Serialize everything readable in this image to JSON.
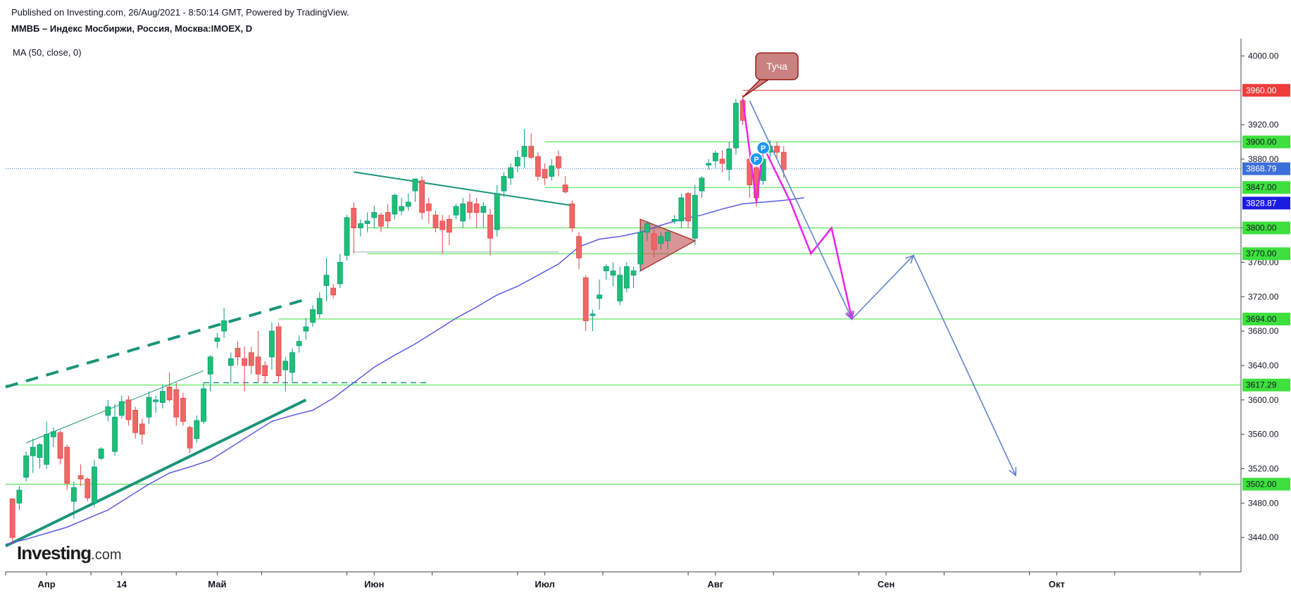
{
  "header": {
    "published": "Published on Investing.com, 26/Aug/2021 - 8:50:14 GMT, Powered by TradingView.",
    "symbol": "ММВБ – Индекс Мосбиржи, Россия, Москва:IMOEX, D",
    "indicator": "MA (50, close, 0)"
  },
  "logo": {
    "brand": "Investing",
    "suffix": ".com"
  },
  "colors": {
    "up": "#089981",
    "up_fill": "#1dbf73",
    "down": "#e04646",
    "down_fill": "#ef6767",
    "ma": "#5b5be8",
    "level": "#3ee03e",
    "resistance": "#f03c3c",
    "trend": "#1a9479",
    "forecast_pink": "#ee22ee",
    "forecast_blue": "#5f84d0",
    "last_price": "#3c6fd8"
  },
  "chart_data": {
    "type": "candlestick",
    "timeframe": "D",
    "ylim": [
      3400,
      4020
    ],
    "x_range": [
      0,
      181
    ],
    "y_ticks": [
      "4000.00",
      "3920.00",
      "3880.00",
      "3800.00",
      "3760.00",
      "3720.00",
      "3680.00",
      "3640.00",
      "3600.00",
      "3560.00",
      "3520.00",
      "3480.00",
      "3440.00"
    ],
    "x_ticks": [
      {
        "label": "Апр",
        "x": 6
      },
      {
        "label": "14",
        "x": 17
      },
      {
        "label": "Май",
        "x": 31
      },
      {
        "label": "Июн",
        "x": 54
      },
      {
        "label": "Июл",
        "x": 79
      },
      {
        "label": "Авг",
        "x": 104
      },
      {
        "label": "Сен",
        "x": 129
      },
      {
        "label": "Окт",
        "x": 154
      }
    ],
    "candles": [
      {
        "x": 1,
        "o": 3485,
        "h": 3485,
        "l": 3432,
        "c": 3440
      },
      {
        "x": 2,
        "o": 3480,
        "h": 3500,
        "l": 3472,
        "c": 3495
      },
      {
        "x": 3,
        "o": 3510,
        "h": 3540,
        "l": 3505,
        "c": 3535
      },
      {
        "x": 4,
        "o": 3535,
        "h": 3555,
        "l": 3515,
        "c": 3545
      },
      {
        "x": 5,
        "o": 3533,
        "h": 3550,
        "l": 3520,
        "c": 3548
      },
      {
        "x": 6,
        "o": 3525,
        "h": 3575,
        "l": 3520,
        "c": 3560
      },
      {
        "x": 7,
        "o": 3557,
        "h": 3568,
        "l": 3545,
        "c": 3563
      },
      {
        "x": 8,
        "o": 3562,
        "h": 3565,
        "l": 3525,
        "c": 3532
      },
      {
        "x": 9,
        "o": 3545,
        "h": 3548,
        "l": 3495,
        "c": 3503
      },
      {
        "x": 10,
        "o": 3482,
        "h": 3505,
        "l": 3462,
        "c": 3498
      },
      {
        "x": 11,
        "o": 3512,
        "h": 3525,
        "l": 3500,
        "c": 3508
      },
      {
        "x": 12,
        "o": 3508,
        "h": 3510,
        "l": 3482,
        "c": 3486
      },
      {
        "x": 13,
        "o": 3480,
        "h": 3530,
        "l": 3475,
        "c": 3522
      },
      {
        "x": 14,
        "o": 3532,
        "h": 3545,
        "l": 3530,
        "c": 3543
      },
      {
        "x": 15,
        "o": 3582,
        "h": 3600,
        "l": 3575,
        "c": 3592
      },
      {
        "x": 16,
        "o": 3540,
        "h": 3595,
        "l": 3535,
        "c": 3580
      },
      {
        "x": 17,
        "o": 3582,
        "h": 3605,
        "l": 3578,
        "c": 3598
      },
      {
        "x": 18,
        "o": 3600,
        "h": 3605,
        "l": 3570,
        "c": 3577
      },
      {
        "x": 19,
        "o": 3588,
        "h": 3592,
        "l": 3555,
        "c": 3562
      },
      {
        "x": 20,
        "o": 3572,
        "h": 3578,
        "l": 3548,
        "c": 3560
      },
      {
        "x": 21,
        "o": 3580,
        "h": 3610,
        "l": 3572,
        "c": 3603
      },
      {
        "x": 22,
        "o": 3598,
        "h": 3605,
        "l": 3585,
        "c": 3600
      },
      {
        "x": 23,
        "o": 3597,
        "h": 3618,
        "l": 3590,
        "c": 3610
      },
      {
        "x": 24,
        "o": 3615,
        "h": 3632,
        "l": 3598,
        "c": 3600
      },
      {
        "x": 25,
        "o": 3612,
        "h": 3620,
        "l": 3570,
        "c": 3580
      },
      {
        "x": 26,
        "o": 3602,
        "h": 3608,
        "l": 3570,
        "c": 3575
      },
      {
        "x": 27,
        "o": 3568,
        "h": 3570,
        "l": 3538,
        "c": 3544
      },
      {
        "x": 28,
        "o": 3555,
        "h": 3582,
        "l": 3550,
        "c": 3576
      },
      {
        "x": 29,
        "o": 3575,
        "h": 3620,
        "l": 3572,
        "c": 3613
      },
      {
        "x": 30,
        "o": 3630,
        "h": 3652,
        "l": 3610,
        "c": 3650
      },
      {
        "x": 31,
        "o": 3668,
        "h": 3678,
        "l": 3660,
        "c": 3672
      },
      {
        "x": 32,
        "o": 3680,
        "h": 3707,
        "l": 3672,
        "c": 3692
      },
      {
        "x": 33,
        "o": 3640,
        "h": 3655,
        "l": 3620,
        "c": 3648
      },
      {
        "x": 34,
        "o": 3660,
        "h": 3668,
        "l": 3640,
        "c": 3650
      },
      {
        "x": 35,
        "o": 3648,
        "h": 3662,
        "l": 3610,
        "c": 3640
      },
      {
        "x": 36,
        "o": 3655,
        "h": 3662,
        "l": 3630,
        "c": 3640
      },
      {
        "x": 37,
        "o": 3650,
        "h": 3680,
        "l": 3620,
        "c": 3630
      },
      {
        "x": 38,
        "o": 3640,
        "h": 3645,
        "l": 3620,
        "c": 3628
      },
      {
        "x": 39,
        "o": 3650,
        "h": 3690,
        "l": 3635,
        "c": 3680
      },
      {
        "x": 40,
        "o": 3685,
        "h": 3690,
        "l": 3620,
        "c": 3628
      },
      {
        "x": 41,
        "o": 3635,
        "h": 3650,
        "l": 3610,
        "c": 3645
      },
      {
        "x": 42,
        "o": 3632,
        "h": 3660,
        "l": 3620,
        "c": 3655
      },
      {
        "x": 43,
        "o": 3663,
        "h": 3675,
        "l": 3655,
        "c": 3668
      },
      {
        "x": 44,
        "o": 3680,
        "h": 3695,
        "l": 3670,
        "c": 3685
      },
      {
        "x": 45,
        "o": 3690,
        "h": 3710,
        "l": 3685,
        "c": 3705
      },
      {
        "x": 46,
        "o": 3700,
        "h": 3725,
        "l": 3695,
        "c": 3718
      },
      {
        "x": 47,
        "o": 3733,
        "h": 3765,
        "l": 3715,
        "c": 3745
      },
      {
        "x": 48,
        "o": 3730,
        "h": 3735,
        "l": 3718,
        "c": 3722
      },
      {
        "x": 49,
        "o": 3735,
        "h": 3770,
        "l": 3730,
        "c": 3760
      },
      {
        "x": 50,
        "o": 3768,
        "h": 3815,
        "l": 3762,
        "c": 3812
      },
      {
        "x": 51,
        "o": 3823,
        "h": 3830,
        "l": 3770,
        "c": 3800
      },
      {
        "x": 52,
        "o": 3800,
        "h": 3810,
        "l": 3790,
        "c": 3805
      },
      {
        "x": 53,
        "o": 3805,
        "h": 3818,
        "l": 3795,
        "c": 3808
      },
      {
        "x": 54,
        "o": 3812,
        "h": 3826,
        "l": 3800,
        "c": 3818
      },
      {
        "x": 55,
        "o": 3815,
        "h": 3818,
        "l": 3795,
        "c": 3802
      },
      {
        "x": 56,
        "o": 3818,
        "h": 3828,
        "l": 3800,
        "c": 3808
      },
      {
        "x": 57,
        "o": 3816,
        "h": 3840,
        "l": 3810,
        "c": 3838
      },
      {
        "x": 58,
        "o": 3820,
        "h": 3835,
        "l": 3815,
        "c": 3825
      },
      {
        "x": 59,
        "o": 3825,
        "h": 3840,
        "l": 3820,
        "c": 3830
      },
      {
        "x": 60,
        "o": 3843,
        "h": 3855,
        "l": 3830,
        "c": 3857
      },
      {
        "x": 61,
        "o": 3855,
        "h": 3860,
        "l": 3810,
        "c": 3818
      },
      {
        "x": 62,
        "o": 3828,
        "h": 3835,
        "l": 3805,
        "c": 3820
      },
      {
        "x": 63,
        "o": 3815,
        "h": 3820,
        "l": 3795,
        "c": 3800
      },
      {
        "x": 64,
        "o": 3808,
        "h": 3815,
        "l": 3770,
        "c": 3798
      },
      {
        "x": 65,
        "o": 3810,
        "h": 3815,
        "l": 3780,
        "c": 3795
      },
      {
        "x": 66,
        "o": 3815,
        "h": 3828,
        "l": 3810,
        "c": 3825
      },
      {
        "x": 67,
        "o": 3808,
        "h": 3835,
        "l": 3800,
        "c": 3828
      },
      {
        "x": 68,
        "o": 3830,
        "h": 3840,
        "l": 3810,
        "c": 3818
      },
      {
        "x": 69,
        "o": 3828,
        "h": 3835,
        "l": 3800,
        "c": 3818
      },
      {
        "x": 70,
        "o": 3818,
        "h": 3830,
        "l": 3800,
        "c": 3825
      },
      {
        "x": 71,
        "o": 3815,
        "h": 3822,
        "l": 3768,
        "c": 3788
      },
      {
        "x": 72,
        "o": 3798,
        "h": 3850,
        "l": 3790,
        "c": 3840
      },
      {
        "x": 73,
        "o": 3843,
        "h": 3865,
        "l": 3836,
        "c": 3860
      },
      {
        "x": 74,
        "o": 3858,
        "h": 3875,
        "l": 3850,
        "c": 3870
      },
      {
        "x": 75,
        "o": 3872,
        "h": 3890,
        "l": 3865,
        "c": 3882
      },
      {
        "x": 76,
        "o": 3883,
        "h": 3915,
        "l": 3870,
        "c": 3895
      },
      {
        "x": 77,
        "o": 3895,
        "h": 3910,
        "l": 3880,
        "c": 3882
      },
      {
        "x": 78,
        "o": 3883,
        "h": 3888,
        "l": 3855,
        "c": 3860
      },
      {
        "x": 79,
        "o": 3868,
        "h": 3875,
        "l": 3850,
        "c": 3858
      },
      {
        "x": 80,
        "o": 3860,
        "h": 3880,
        "l": 3855,
        "c": 3872
      },
      {
        "x": 81,
        "o": 3883,
        "h": 3890,
        "l": 3860,
        "c": 3870
      },
      {
        "x": 82,
        "o": 3850,
        "h": 3860,
        "l": 3840,
        "c": 3842
      },
      {
        "x": 83,
        "o": 3828,
        "h": 3832,
        "l": 3795,
        "c": 3800
      },
      {
        "x": 84,
        "o": 3790,
        "h": 3795,
        "l": 3752,
        "c": 3765
      },
      {
        "x": 85,
        "o": 3742,
        "h": 3745,
        "l": 3680,
        "c": 3692
      },
      {
        "x": 86,
        "o": 3698,
        "h": 3705,
        "l": 3680,
        "c": 3700
      },
      {
        "x": 87,
        "o": 3718,
        "h": 3740,
        "l": 3705,
        "c": 3722
      },
      {
        "x": 88,
        "o": 3750,
        "h": 3758,
        "l": 3740,
        "c": 3755
      },
      {
        "x": 89,
        "o": 3745,
        "h": 3760,
        "l": 3732,
        "c": 3750
      },
      {
        "x": 90,
        "o": 3715,
        "h": 3755,
        "l": 3710,
        "c": 3745
      },
      {
        "x": 91,
        "o": 3730,
        "h": 3760,
        "l": 3725,
        "c": 3755
      },
      {
        "x": 92,
        "o": 3745,
        "h": 3755,
        "l": 3730,
        "c": 3750
      },
      {
        "x": 93,
        "o": 3758,
        "h": 3800,
        "l": 3750,
        "c": 3795
      },
      {
        "x": 94,
        "o": 3795,
        "h": 3808,
        "l": 3785,
        "c": 3805
      },
      {
        "x": 95,
        "o": 3793,
        "h": 3800,
        "l": 3765,
        "c": 3775
      },
      {
        "x": 96,
        "o": 3782,
        "h": 3795,
        "l": 3775,
        "c": 3790
      },
      {
        "x": 97,
        "o": 3785,
        "h": 3798,
        "l": 3775,
        "c": 3795
      },
      {
        "x": 98,
        "o": 3808,
        "h": 3815,
        "l": 3805,
        "c": 3810
      },
      {
        "x": 99,
        "o": 3808,
        "h": 3840,
        "l": 3800,
        "c": 3835
      },
      {
        "x": 100,
        "o": 3840,
        "h": 3842,
        "l": 3800,
        "c": 3808
      },
      {
        "x": 101,
        "o": 3788,
        "h": 3850,
        "l": 3780,
        "c": 3838
      },
      {
        "x": 102,
        "o": 3843,
        "h": 3860,
        "l": 3835,
        "c": 3858
      },
      {
        "x": 103,
        "o": 3873,
        "h": 3880,
        "l": 3868,
        "c": 3875
      },
      {
        "x": 104,
        "o": 3878,
        "h": 3890,
        "l": 3870,
        "c": 3887
      },
      {
        "x": 105,
        "o": 3880,
        "h": 3890,
        "l": 3865,
        "c": 3875
      },
      {
        "x": 106,
        "o": 3868,
        "h": 3900,
        "l": 3855,
        "c": 3892
      },
      {
        "x": 107,
        "o": 3893,
        "h": 3950,
        "l": 3885,
        "c": 3945
      },
      {
        "x": 108,
        "o": 3948,
        "h": 3955,
        "l": 3920,
        "c": 3925
      },
      {
        "x": 109,
        "o": 3880,
        "h": 3890,
        "l": 3835,
        "c": 3850
      },
      {
        "x": 110,
        "o": 3870,
        "h": 3875,
        "l": 3825,
        "c": 3835
      },
      {
        "x": 111,
        "o": 3855,
        "h": 3900,
        "l": 3850,
        "c": 3880
      },
      {
        "x": 112,
        "o": 3888,
        "h": 3902,
        "l": 3880,
        "c": 3895
      },
      {
        "x": 113,
        "o": 3895,
        "h": 3900,
        "l": 3880,
        "c": 3888
      },
      {
        "x": 114,
        "o": 3888,
        "h": 3895,
        "l": 3858,
        "c": 3868
      }
    ],
    "ma_50": [
      [
        0,
        3432
      ],
      [
        3,
        3438
      ],
      [
        6,
        3445
      ],
      [
        9,
        3452
      ],
      [
        12,
        3462
      ],
      [
        15,
        3472
      ],
      [
        18,
        3487
      ],
      [
        21,
        3502
      ],
      [
        24,
        3515
      ],
      [
        27,
        3522
      ],
      [
        30,
        3530
      ],
      [
        33,
        3545
      ],
      [
        36,
        3560
      ],
      [
        39,
        3575
      ],
      [
        42,
        3582
      ],
      [
        45,
        3588
      ],
      [
        48,
        3602
      ],
      [
        51,
        3620
      ],
      [
        54,
        3638
      ],
      [
        57,
        3652
      ],
      [
        60,
        3665
      ],
      [
        63,
        3680
      ],
      [
        66,
        3695
      ],
      [
        69,
        3708
      ],
      [
        72,
        3722
      ],
      [
        75,
        3732
      ],
      [
        78,
        3745
      ],
      [
        81,
        3758
      ],
      [
        84,
        3778
      ],
      [
        87,
        3787
      ],
      [
        90,
        3790
      ],
      [
        93,
        3795
      ],
      [
        96,
        3803
      ],
      [
        99,
        3810
      ],
      [
        102,
        3815
      ],
      [
        105,
        3822
      ],
      [
        108,
        3828
      ],
      [
        111,
        3830
      ],
      [
        114,
        3832
      ],
      [
        117,
        3835
      ]
    ],
    "ma_last": "3828.87",
    "last_close": "3868.79",
    "horizontal_levels": [
      {
        "value": 3960.0,
        "label": "3960.00",
        "color": "#f03c3c",
        "x_start": 108
      },
      {
        "value": 3900.0,
        "label": "3900.00",
        "color": "#3ee03e",
        "x_start": 79
      },
      {
        "value": 3847.0,
        "label": "3847.00",
        "color": "#3ee03e",
        "x_start": 79
      },
      {
        "value": 3800.0,
        "label": "3800.00",
        "color": "#3ee03e",
        "x_start": 53
      },
      {
        "value": 3770.0,
        "label": "3770.00",
        "color": "#3ee03e",
        "x_start": 53
      },
      {
        "value": 3694.0,
        "label": "3694.00",
        "color": "#3ee03e",
        "x_start": 40
      },
      {
        "value": 3617.29,
        "label": "3617.29",
        "color": "#3ee03e",
        "x_start": 0
      },
      {
        "value": 3502.0,
        "label": "3502.00",
        "color": "#3ee03e",
        "x_start": 0
      }
    ],
    "annotations": [
      {
        "type": "callout",
        "text": "Туча",
        "x": 113,
        "y": 3988,
        "point_x": 108,
        "point_y": 3952
      },
      {
        "type": "pivot",
        "text": "P",
        "x": 110,
        "y": 3880
      },
      {
        "type": "pivot",
        "text": "P",
        "x": 111,
        "y": 3893
      }
    ],
    "drawings": [
      {
        "name": "trend-support",
        "points": [
          [
            0,
            3430
          ],
          [
            44,
            3600
          ]
        ],
        "style": "solid-thick"
      },
      {
        "name": "channel-top-dashed",
        "points": [
          [
            0,
            3615
          ],
          [
            44,
            3717
          ]
        ],
        "style": "dashed-thick"
      },
      {
        "name": "channel-top-thin",
        "points": [
          [
            3,
            3550
          ],
          [
            29,
            3634
          ]
        ],
        "style": "thin"
      },
      {
        "name": "dashed-level",
        "points": [
          [
            29,
            3620
          ],
          [
            62,
            3620
          ]
        ],
        "style": "dashed-thin"
      },
      {
        "name": "triangle-resistance",
        "points": [
          [
            51,
            3865
          ],
          [
            83,
            3826
          ]
        ],
        "style": "thin"
      },
      {
        "name": "level-3770-ext",
        "points": [
          [
            51,
            3772
          ],
          [
            81,
            3772
          ]
        ],
        "style": "thin"
      }
    ],
    "triangle": {
      "points": [
        [
          93,
          3810
        ],
        [
          101,
          3785
        ],
        [
          93,
          3750
        ]
      ]
    },
    "forecast_pink": [
      [
        108,
        3950
      ],
      [
        110,
        3830
      ],
      [
        111,
        3895
      ],
      [
        115,
        3830
      ],
      [
        118,
        3770
      ],
      [
        121,
        3800
      ],
      [
        124,
        3694
      ]
    ],
    "forecast_blue": [
      [
        109,
        3948
      ],
      [
        124,
        3694
      ],
      [
        133,
        3768
      ],
      [
        148,
        3512
      ]
    ]
  }
}
